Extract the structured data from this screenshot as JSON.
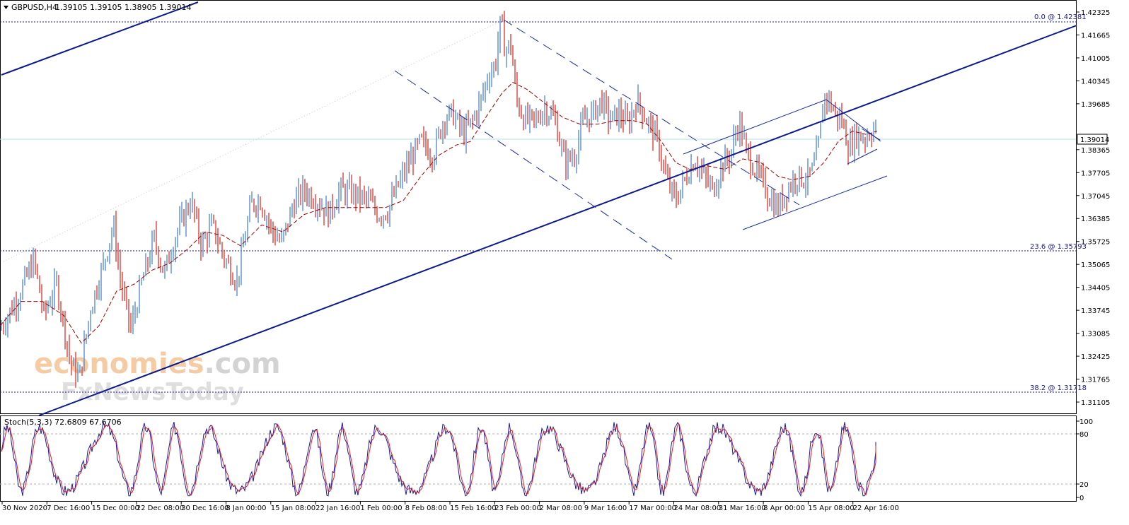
{
  "header": {
    "symbol": "GBPUSD,H4",
    "ohlc": "1.39105 1.39105 1.38905 1.39014"
  },
  "chart_data": {
    "type": "candlestick",
    "price_axis": {
      "min": 1.3078,
      "max": 1.4265,
      "ticks": [
        "1.42325",
        "1.41665",
        "1.41005",
        "1.40345",
        "1.39685",
        "1.38365",
        "1.37705",
        "1.37045",
        "1.36385",
        "1.35725",
        "1.35065",
        "1.34405",
        "1.33745",
        "1.33085",
        "1.32425",
        "1.31765",
        "1.31105"
      ],
      "current_price": "1.39014"
    },
    "time_axis": {
      "labels": [
        "30 Nov 2020",
        "7 Dec 16:00",
        "15 Dec 00:00",
        "22 Dec 08:00",
        "30 Dec 16:00",
        "8 Jan 00:00",
        "15 Jan 08:00",
        "22 Jan 16:00",
        "1 Feb 00:00",
        "8 Feb 08:00",
        "15 Feb 16:00",
        "23 Feb 00:00",
        "2 Mar 08:00",
        "9 Mar 16:00",
        "17 Mar 00:00",
        "24 Mar 08:00",
        "31 Mar 16:00",
        "8 Apr 00:00",
        "15 Apr 08:00",
        "22 Apr 16:00"
      ]
    },
    "fibonacci": [
      {
        "label": "0.0 @ 1.42381",
        "price": 1.42381
      },
      {
        "label": "23.6 @ 1.35793",
        "price": 1.35793
      },
      {
        "label": "38.2 @ 1.31718",
        "price": 1.31718
      }
    ],
    "price_path": [
      [
        0,
        1.332
      ],
      [
        25,
        1.341
      ],
      [
        48,
        1.352
      ],
      [
        62,
        1.336
      ],
      [
        80,
        1.345
      ],
      [
        100,
        1.322
      ],
      [
        112,
        1.318
      ],
      [
        128,
        1.338
      ],
      [
        148,
        1.352
      ],
      [
        160,
        1.362
      ],
      [
        172,
        1.344
      ],
      [
        185,
        1.332
      ],
      [
        200,
        1.345
      ],
      [
        218,
        1.358
      ],
      [
        232,
        1.348
      ],
      [
        250,
        1.36
      ],
      [
        270,
        1.369
      ],
      [
        285,
        1.356
      ],
      [
        300,
        1.362
      ],
      [
        318,
        1.352
      ],
      [
        335,
        1.346
      ],
      [
        355,
        1.368
      ],
      [
        368,
        1.369
      ],
      [
        385,
        1.36
      ],
      [
        398,
        1.357
      ],
      [
        415,
        1.368
      ],
      [
        430,
        1.372
      ],
      [
        448,
        1.369
      ],
      [
        465,
        1.365
      ],
      [
        480,
        1.372
      ],
      [
        500,
        1.371
      ],
      [
        520,
        1.369
      ],
      [
        535,
        1.365
      ],
      [
        548,
        1.366
      ],
      [
        560,
        1.372
      ],
      [
        578,
        1.38
      ],
      [
        595,
        1.386
      ],
      [
        612,
        1.382
      ],
      [
        628,
        1.393
      ],
      [
        640,
        1.394
      ],
      [
        655,
        1.388
      ],
      [
        668,
        1.392
      ],
      [
        680,
        1.398
      ],
      [
        690,
        1.405
      ],
      [
        700,
        1.408
      ],
      [
        708,
        1.421
      ],
      [
        714,
        1.412
      ],
      [
        722,
        1.414
      ],
      [
        730,
        1.398
      ],
      [
        742,
        1.392
      ],
      [
        758,
        1.392
      ],
      [
        770,
        1.396
      ],
      [
        785,
        1.392
      ],
      [
        798,
        1.38
      ],
      [
        812,
        1.382
      ],
      [
        825,
        1.392
      ],
      [
        838,
        1.394
      ],
      [
        850,
        1.398
      ],
      [
        862,
        1.392
      ],
      [
        875,
        1.394
      ],
      [
        888,
        1.391
      ],
      [
        900,
        1.398
      ],
      [
        915,
        1.392
      ],
      [
        930,
        1.386
      ],
      [
        942,
        1.375
      ],
      [
        955,
        1.369
      ],
      [
        968,
        1.375
      ],
      [
        982,
        1.381
      ],
      [
        995,
        1.376
      ],
      [
        1008,
        1.372
      ],
      [
        1020,
        1.379
      ],
      [
        1032,
        1.382
      ],
      [
        1045,
        1.392
      ],
      [
        1055,
        1.383
      ],
      [
        1065,
        1.379
      ],
      [
        1078,
        1.374
      ],
      [
        1090,
        1.369
      ],
      [
        1100,
        1.367
      ],
      [
        1112,
        1.372
      ],
      [
        1125,
        1.376
      ],
      [
        1140,
        1.375
      ],
      [
        1150,
        1.378
      ],
      [
        1158,
        1.386
      ],
      [
        1165,
        1.399
      ],
      [
        1172,
        1.398
      ],
      [
        1180,
        1.394
      ],
      [
        1190,
        1.392
      ],
      [
        1200,
        1.384
      ],
      [
        1210,
        1.388
      ],
      [
        1222,
        1.387
      ],
      [
        1232,
        1.389
      ],
      [
        1238,
        1.39
      ]
    ],
    "ma_path": [
      [
        0,
        1.333
      ],
      [
        30,
        1.34
      ],
      [
        60,
        1.34
      ],
      [
        90,
        1.336
      ],
      [
        115,
        1.328
      ],
      [
        140,
        1.333
      ],
      [
        165,
        1.343
      ],
      [
        190,
        1.345
      ],
      [
        215,
        1.349
      ],
      [
        240,
        1.351
      ],
      [
        265,
        1.355
      ],
      [
        290,
        1.36
      ],
      [
        315,
        1.359
      ],
      [
        340,
        1.356
      ],
      [
        370,
        1.362
      ],
      [
        400,
        1.36
      ],
      [
        430,
        1.365
      ],
      [
        460,
        1.367
      ],
      [
        490,
        1.367
      ],
      [
        520,
        1.367
      ],
      [
        545,
        1.367
      ],
      [
        570,
        1.369
      ],
      [
        595,
        1.376
      ],
      [
        620,
        1.382
      ],
      [
        645,
        1.385
      ],
      [
        665,
        1.386
      ],
      [
        690,
        1.394
      ],
      [
        710,
        1.4
      ],
      [
        725,
        1.403
      ],
      [
        745,
        1.401
      ],
      [
        770,
        1.397
      ],
      [
        795,
        1.393
      ],
      [
        820,
        1.391
      ],
      [
        845,
        1.391
      ],
      [
        870,
        1.392
      ],
      [
        895,
        1.392
      ],
      [
        915,
        1.391
      ],
      [
        935,
        1.386
      ],
      [
        955,
        1.38
      ],
      [
        975,
        1.378
      ],
      [
        1000,
        1.379
      ],
      [
        1025,
        1.378
      ],
      [
        1050,
        1.381
      ],
      [
        1075,
        1.38
      ],
      [
        1100,
        1.376
      ],
      [
        1120,
        1.375
      ],
      [
        1145,
        1.376
      ],
      [
        1165,
        1.38
      ],
      [
        1185,
        1.386
      ],
      [
        1205,
        1.389
      ],
      [
        1225,
        1.388
      ],
      [
        1240,
        1.389
      ]
    ],
    "stochastic": {
      "label": "Stoch(5,3,3) 72.6809 67.6706",
      "ticks": [
        "100",
        "80",
        "20",
        "0"
      ],
      "levels": [
        80,
        20
      ]
    }
  },
  "watermark": {
    "line1": "economies",
    "line1_suffix": ".com",
    "line2": "FxNewsToday"
  }
}
